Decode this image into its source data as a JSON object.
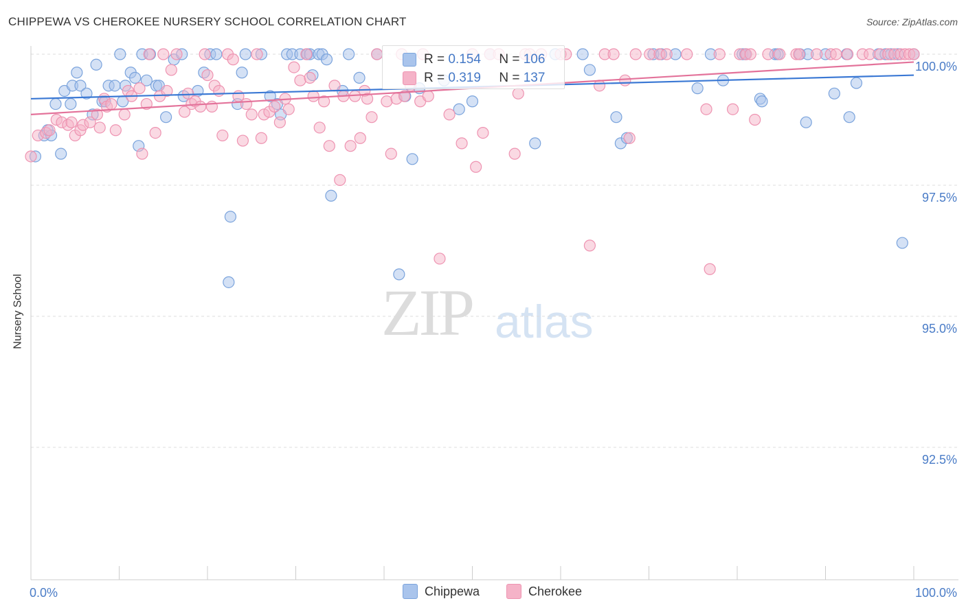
{
  "title": "CHIPPEWA VS CHEROKEE NURSERY SCHOOL CORRELATION CHART",
  "source": "Source: ZipAtlas.com",
  "watermark": {
    "zip": "ZIP",
    "atlas": "atlas"
  },
  "legend": {
    "rows": [
      {
        "r_label": "R =",
        "r_value": "0.154",
        "n_label": "N =",
        "n_value": "106"
      },
      {
        "r_label": "R =",
        "r_value": "0.319",
        "n_label": "N =",
        "n_value": "137"
      }
    ]
  },
  "bottom_legend": {
    "chippewa": "Chippewa",
    "cherokee": "Cherokee"
  },
  "colors": {
    "chippewa_fill": "#a9c4ec",
    "chippewa_stroke": "#7aa3dc",
    "chippewa_line": "#3a78d4",
    "cherokee_fill": "#f5b3c8",
    "cherokee_stroke": "#ee93b1",
    "cherokee_line": "#e3729a",
    "axis_text": "#4a7cc7",
    "grid": "#dddddd"
  },
  "chart_data": {
    "type": "scatter",
    "title": "CHIPPEWA VS CHEROKEE NURSERY SCHOOL CORRELATION CHART",
    "ylabel": "Nursery School",
    "xlabel": "",
    "xlim": [
      0,
      100
    ],
    "ylim": [
      90.1,
      100.3
    ],
    "x_tick_labels": [
      "0.0%",
      "100.0%"
    ],
    "y_ticks": [
      92.5,
      95.0,
      97.5,
      100.0
    ],
    "y_tick_labels": [
      "92.5%",
      "95.0%",
      "97.5%",
      "100.0%"
    ],
    "grid": true,
    "legend_position": "top-center",
    "series": [
      {
        "name": "Chippewa",
        "r": 0.154,
        "n": 106,
        "trend": {
          "x": [
            0,
            100
          ],
          "y": [
            99.15,
            99.6
          ]
        },
        "points": [
          [
            0.5,
            98.05
          ],
          [
            1.5,
            98.45
          ],
          [
            1.9,
            98.55
          ],
          [
            2.3,
            98.45
          ],
          [
            2.8,
            99.05
          ],
          [
            3.4,
            98.1
          ],
          [
            3.8,
            99.3
          ],
          [
            4.5,
            99.05
          ],
          [
            4.7,
            99.4
          ],
          [
            5.2,
            99.65
          ],
          [
            5.6,
            99.4
          ],
          [
            6.3,
            99.25
          ],
          [
            7.0,
            98.85
          ],
          [
            7.4,
            99.8
          ],
          [
            8.1,
            99.1
          ],
          [
            8.4,
            99.1
          ],
          [
            8.8,
            99.4
          ],
          [
            9.5,
            99.4
          ],
          [
            10.1,
            100.0
          ],
          [
            10.4,
            99.1
          ],
          [
            10.7,
            99.4
          ],
          [
            11.3,
            99.65
          ],
          [
            11.8,
            99.55
          ],
          [
            12.2,
            98.25
          ],
          [
            12.6,
            100.0
          ],
          [
            13.1,
            99.5
          ],
          [
            13.5,
            100.0
          ],
          [
            14.2,
            99.4
          ],
          [
            14.5,
            99.4
          ],
          [
            15.3,
            98.8
          ],
          [
            16.2,
            99.9
          ],
          [
            17.1,
            100.0
          ],
          [
            17.3,
            99.2
          ],
          [
            18.9,
            99.3
          ],
          [
            19.6,
            99.65
          ],
          [
            20.3,
            100.0
          ],
          [
            21.0,
            100.0
          ],
          [
            22.6,
            96.9
          ],
          [
            22.4,
            95.65
          ],
          [
            23.4,
            99.05
          ],
          [
            23.9,
            99.65
          ],
          [
            24.3,
            100.0
          ],
          [
            26.1,
            100.0
          ],
          [
            27.1,
            99.2
          ],
          [
            27.9,
            99.05
          ],
          [
            28.3,
            98.85
          ],
          [
            29.0,
            100.0
          ],
          [
            29.6,
            100.0
          ],
          [
            30.5,
            100.0
          ],
          [
            31.3,
            100.0
          ],
          [
            31.6,
            100.0
          ],
          [
            31.9,
            99.6
          ],
          [
            32.6,
            100.0
          ],
          [
            33.0,
            100.0
          ],
          [
            33.5,
            99.9
          ],
          [
            34.0,
            97.3
          ],
          [
            35.3,
            99.3
          ],
          [
            36.0,
            100.0
          ],
          [
            37.2,
            99.55
          ],
          [
            39.2,
            100.0
          ],
          [
            41.7,
            95.8
          ],
          [
            42.4,
            99.2
          ],
          [
            43.2,
            98.0
          ],
          [
            44.0,
            99.35
          ],
          [
            46.8,
            99.5
          ],
          [
            48.5,
            98.95
          ],
          [
            50.0,
            99.1
          ],
          [
            52.0,
            100.0
          ],
          [
            57.1,
            98.3
          ],
          [
            59.4,
            100.0
          ],
          [
            62.5,
            100.0
          ],
          [
            63.3,
            99.7
          ],
          [
            66.3,
            98.8
          ],
          [
            66.8,
            98.3
          ],
          [
            67.5,
            98.4
          ],
          [
            70.5,
            100.0
          ],
          [
            71.4,
            100.0
          ],
          [
            73.0,
            100.0
          ],
          [
            75.5,
            99.35
          ],
          [
            77.0,
            100.0
          ],
          [
            78.4,
            99.5
          ],
          [
            80.6,
            100.0
          ],
          [
            80.9,
            100.0
          ],
          [
            81.0,
            100.0
          ],
          [
            82.6,
            99.15
          ],
          [
            82.8,
            99.1
          ],
          [
            84.3,
            100.0
          ],
          [
            84.6,
            100.0
          ],
          [
            87.1,
            100.0
          ],
          [
            87.8,
            98.7
          ],
          [
            88.0,
            100.0
          ],
          [
            90.0,
            100.0
          ],
          [
            91.0,
            99.25
          ],
          [
            92.4,
            100.0
          ],
          [
            92.7,
            98.8
          ],
          [
            93.5,
            99.45
          ],
          [
            96.0,
            100.0
          ],
          [
            96.8,
            100.0
          ],
          [
            97.4,
            100.0
          ],
          [
            98.2,
            100.0
          ],
          [
            98.7,
            96.4
          ],
          [
            100.0,
            100.0
          ]
        ]
      },
      {
        "name": "Cherokee",
        "r": 0.319,
        "n": 137,
        "trend": {
          "x": [
            0,
            100
          ],
          "y": [
            98.85,
            99.85
          ]
        },
        "points": [
          [
            0.0,
            98.05
          ],
          [
            0.8,
            98.45
          ],
          [
            1.7,
            98.5
          ],
          [
            2.1,
            98.55
          ],
          [
            2.9,
            98.75
          ],
          [
            3.5,
            98.7
          ],
          [
            4.2,
            98.65
          ],
          [
            4.6,
            98.7
          ],
          [
            5.0,
            98.45
          ],
          [
            5.6,
            98.55
          ],
          [
            5.9,
            98.65
          ],
          [
            6.7,
            98.7
          ],
          [
            7.5,
            98.85
          ],
          [
            7.8,
            98.6
          ],
          [
            8.3,
            99.15
          ],
          [
            8.6,
            99.0
          ],
          [
            9.1,
            99.05
          ],
          [
            9.6,
            98.55
          ],
          [
            10.6,
            98.85
          ],
          [
            11.0,
            99.3
          ],
          [
            11.4,
            99.2
          ],
          [
            12.3,
            99.35
          ],
          [
            12.6,
            98.1
          ],
          [
            13.1,
            99.05
          ],
          [
            13.4,
            100.0
          ],
          [
            14.1,
            98.5
          ],
          [
            14.6,
            99.2
          ],
          [
            15.0,
            100.0
          ],
          [
            15.4,
            99.3
          ],
          [
            15.9,
            99.7
          ],
          [
            16.5,
            100.0
          ],
          [
            17.4,
            98.9
          ],
          [
            17.8,
            99.25
          ],
          [
            18.2,
            99.05
          ],
          [
            18.6,
            99.1
          ],
          [
            19.2,
            99.0
          ],
          [
            19.7,
            100.0
          ],
          [
            20.0,
            99.6
          ],
          [
            20.5,
            99.0
          ],
          [
            20.8,
            99.4
          ],
          [
            21.3,
            99.3
          ],
          [
            21.7,
            98.45
          ],
          [
            22.3,
            100.0
          ],
          [
            22.9,
            99.9
          ],
          [
            23.5,
            99.2
          ],
          [
            24.0,
            98.35
          ],
          [
            24.4,
            99.05
          ],
          [
            25.0,
            98.85
          ],
          [
            25.6,
            100.0
          ],
          [
            26.1,
            98.4
          ],
          [
            26.4,
            98.85
          ],
          [
            27.0,
            98.9
          ],
          [
            27.6,
            99.0
          ],
          [
            28.2,
            98.7
          ],
          [
            28.8,
            99.15
          ],
          [
            29.2,
            98.95
          ],
          [
            29.8,
            99.75
          ],
          [
            30.5,
            99.5
          ],
          [
            31.2,
            100.0
          ],
          [
            31.6,
            99.55
          ],
          [
            32.0,
            99.2
          ],
          [
            32.7,
            98.6
          ],
          [
            33.2,
            99.1
          ],
          [
            33.8,
            98.25
          ],
          [
            34.4,
            99.4
          ],
          [
            35.0,
            97.6
          ],
          [
            35.4,
            99.2
          ],
          [
            36.2,
            98.25
          ],
          [
            36.7,
            99.2
          ],
          [
            37.3,
            98.4
          ],
          [
            37.8,
            99.3
          ],
          [
            38.1,
            99.15
          ],
          [
            38.6,
            98.8
          ],
          [
            39.2,
            100.0
          ],
          [
            40.3,
            99.1
          ],
          [
            40.8,
            98.1
          ],
          [
            41.4,
            99.15
          ],
          [
            42.0,
            100.0
          ],
          [
            42.3,
            99.2
          ],
          [
            43.0,
            99.4
          ],
          [
            44.1,
            99.1
          ],
          [
            44.4,
            100.0
          ],
          [
            45.0,
            99.2
          ],
          [
            46.3,
            96.1
          ],
          [
            47.4,
            98.85
          ],
          [
            48.8,
            98.3
          ],
          [
            50.0,
            100.0
          ],
          [
            50.4,
            97.85
          ],
          [
            51.2,
            98.5
          ],
          [
            52.0,
            100.0
          ],
          [
            53.0,
            100.0
          ],
          [
            54.8,
            98.1
          ],
          [
            55.2,
            99.25
          ],
          [
            56.0,
            100.0
          ],
          [
            56.5,
            100.0
          ],
          [
            57.8,
            100.0
          ],
          [
            60.0,
            100.0
          ],
          [
            60.6,
            100.0
          ],
          [
            63.3,
            96.35
          ],
          [
            64.4,
            99.4
          ],
          [
            65.0,
            100.0
          ],
          [
            66.0,
            100.0
          ],
          [
            67.3,
            99.5
          ],
          [
            67.8,
            98.4
          ],
          [
            68.5,
            100.0
          ],
          [
            70.1,
            100.0
          ],
          [
            71.2,
            100.0
          ],
          [
            72.0,
            100.0
          ],
          [
            74.3,
            100.0
          ],
          [
            76.5,
            98.95
          ],
          [
            76.9,
            95.9
          ],
          [
            78.0,
            100.0
          ],
          [
            79.5,
            98.95
          ],
          [
            80.3,
            100.0
          ],
          [
            81.0,
            100.0
          ],
          [
            81.5,
            100.0
          ],
          [
            82.0,
            98.75
          ],
          [
            83.5,
            100.0
          ],
          [
            84.8,
            100.0
          ],
          [
            86.7,
            100.0
          ],
          [
            87.0,
            100.0
          ],
          [
            89.0,
            100.0
          ],
          [
            90.6,
            100.0
          ],
          [
            91.2,
            100.0
          ],
          [
            92.5,
            100.0
          ],
          [
            94.2,
            100.0
          ],
          [
            95.0,
            100.0
          ],
          [
            96.2,
            100.0
          ],
          [
            97.1,
            100.0
          ],
          [
            97.8,
            100.0
          ],
          [
            98.5,
            100.0
          ],
          [
            99.0,
            100.0
          ],
          [
            99.5,
            100.0
          ],
          [
            100.0,
            100.0
          ]
        ]
      }
    ]
  }
}
